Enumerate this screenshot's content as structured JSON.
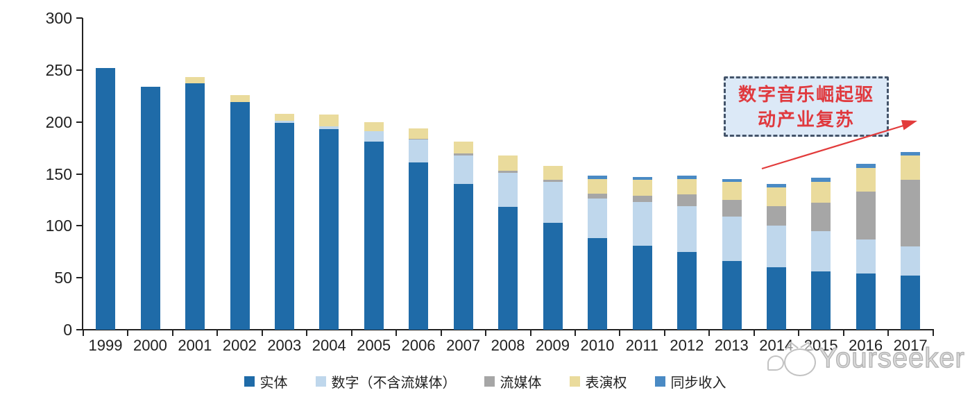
{
  "chart_data": {
    "type": "bar",
    "stacked": true,
    "categories": [
      "1999",
      "2000",
      "2001",
      "2002",
      "2003",
      "2004",
      "2005",
      "2006",
      "2007",
      "2008",
      "2009",
      "2010",
      "2011",
      "2012",
      "2013",
      "2014",
      "2015",
      "2016",
      "2017"
    ],
    "series": [
      {
        "name": "实体",
        "color": "#1F6BA8",
        "values": [
          252,
          234,
          237,
          219,
          199,
          193,
          181,
          161,
          140,
          118,
          103,
          88,
          81,
          75,
          66,
          60,
          56,
          54,
          52
        ]
      },
      {
        "name": "数字（不含流媒体）",
        "color": "#BFD7EC",
        "values": [
          0,
          0,
          0,
          0,
          2,
          3,
          10,
          22,
          28,
          33,
          39,
          38,
          42,
          44,
          43,
          40,
          39,
          33,
          28
        ]
      },
      {
        "name": "流媒体",
        "color": "#A6A6A6",
        "values": [
          0,
          0,
          0,
          0,
          0,
          0,
          0,
          1,
          2,
          2,
          2,
          5,
          6,
          11,
          16,
          19,
          27,
          46,
          64
        ]
      },
      {
        "name": "表演权",
        "color": "#EADB9C",
        "values": [
          0,
          0,
          6,
          7,
          7,
          11,
          9,
          10,
          11,
          15,
          14,
          14,
          15,
          15,
          17,
          18,
          20,
          23,
          24
        ]
      },
      {
        "name": "同步收入",
        "color": "#4A8AC4",
        "values": [
          0,
          0,
          0,
          0,
          0,
          0,
          0,
          0,
          0,
          0,
          0,
          3,
          3,
          3,
          3,
          3,
          4,
          4,
          3
        ]
      }
    ],
    "ylim": [
      0,
      300
    ],
    "y_ticks": [
      0,
      50,
      100,
      150,
      200,
      250,
      300
    ],
    "grid": false,
    "legend_position": "bottom",
    "title": ""
  },
  "annotation": {
    "line1": "数字音乐崛起驱",
    "line2": "动产业复苏",
    "box_fill": "#DCE9F7",
    "border_color": "#44546A",
    "text_color": "#E0393E",
    "arrow_color": "#E23B3B"
  },
  "watermark": {
    "text": "Yourseeker",
    "icon": "yourseeker-cat-logo",
    "color": "#C2C2C2"
  },
  "axis": {
    "line_color": "#222222",
    "label_color": "#212121"
  }
}
